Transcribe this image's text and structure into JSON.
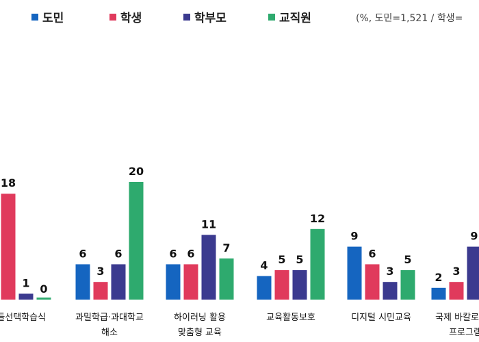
{
  "note": "(%, 도민=1,521  / 학생=",
  "chart_data": {
    "type": "bar",
    "title": "",
    "xlabel": "",
    "ylabel": "",
    "legend_position": "top",
    "grid": false,
    "ylim": [
      0,
      32
    ],
    "categories": [
      [
        "...들선택학습식"
      ],
      [
        "과밀학급·과대학교",
        "해소"
      ],
      [
        "하이러닝 활용",
        "맞춤형 교육"
      ],
      [
        "교육활동보호"
      ],
      [
        "디지털 시민교육"
      ],
      [
        "국제 바칼로레아",
        "프로그램"
      ]
    ],
    "series": [
      {
        "name": "도민",
        "color": "#1565c0",
        "values": [
          null,
          6,
          6,
          4,
          9,
          2
        ]
      },
      {
        "name": "학생",
        "color": "#e03a5c",
        "values": [
          18,
          3,
          6,
          5,
          6,
          3
        ]
      },
      {
        "name": "학부모",
        "color": "#3b3a8f",
        "values": [
          1,
          6,
          11,
          5,
          3,
          9
        ]
      },
      {
        "name": "교직원",
        "color": "#2eaa6e",
        "values": [
          0,
          20,
          7,
          12,
          5,
          null
        ]
      }
    ]
  }
}
